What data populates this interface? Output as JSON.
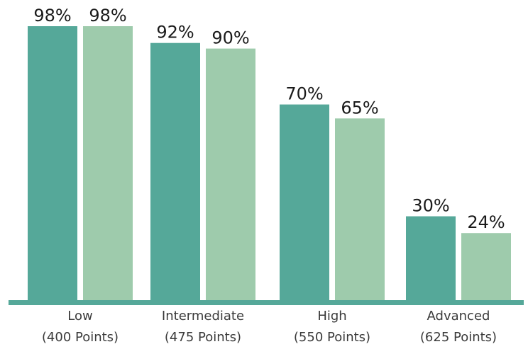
{
  "chart_data": {
    "type": "bar",
    "categories": [
      [
        "Low",
        "(400 Points)"
      ],
      [
        "Intermediate",
        "(475 Points)"
      ],
      [
        "High",
        "(550 Points)"
      ],
      [
        "Advanced",
        "(625 Points)"
      ]
    ],
    "series": [
      {
        "color": "#55a899",
        "values": [
          98,
          92,
          70,
          30
        ]
      },
      {
        "color": "#9ecbac",
        "values": [
          98,
          90,
          65,
          24
        ]
      }
    ],
    "value_suffix": "%",
    "ylim": [
      0,
      100
    ],
    "grid": false,
    "legend": "none",
    "axis_color": "#55a899"
  }
}
